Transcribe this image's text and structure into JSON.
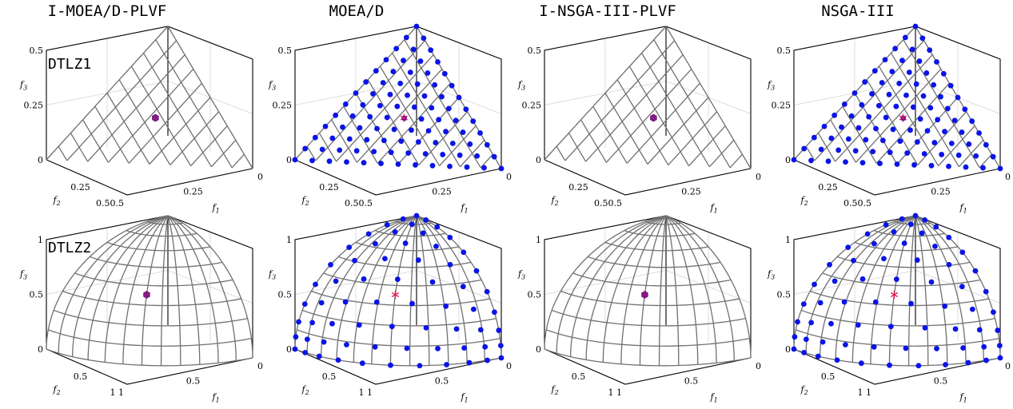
{
  "columns": [
    {
      "title": "I-MOEA/D-PLVF"
    },
    {
      "title": "MOEA/D"
    },
    {
      "title": "I-NSGA-III-PLVF"
    },
    {
      "title": "NSGA-III"
    }
  ],
  "rows": [
    {
      "label": "DTLZ1",
      "f3_ticks": [
        "0",
        "0.25",
        "0.5"
      ],
      "f2_ticks": [
        "0.25",
        "0.50.5"
      ],
      "f1_ticks": [
        "0.25",
        "0"
      ]
    },
    {
      "label": "DTLZ2",
      "f3_ticks": [
        "0",
        "0.5",
        "1"
      ],
      "f2_ticks": [
        "0.5",
        "1 1"
      ],
      "f1_ticks": [
        "0.5",
        "0"
      ]
    }
  ],
  "axis_labels": {
    "f1": "f₁",
    "f2": "f₂",
    "f3": "f₃"
  },
  "colors": {
    "solutions": "#0a14e6",
    "reference_point": "#e0144a",
    "preferred_point": "#8a1a8a",
    "front_mesh": "#707070"
  },
  "chart_data": [
    {
      "type": "scatter",
      "problem": "DTLZ1",
      "algorithm": "I-MOEA/D-PLVF",
      "front": "linear",
      "front_max": 0.5,
      "series": [
        {
          "name": "solutions",
          "marker": "hexagon",
          "points": [
            [
              0.17,
              0.17,
              0.17
            ]
          ]
        }
      ]
    },
    {
      "type": "scatter",
      "problem": "DTLZ1",
      "algorithm": "MOEA/D",
      "front": "linear",
      "front_max": 0.5,
      "reference_point": [
        0.17,
        0.17,
        0.17
      ],
      "series": [
        {
          "name": "solutions",
          "marker": "circle",
          "distribution": "uniform-simplex",
          "divisions": 12
        }
      ]
    },
    {
      "type": "scatter",
      "problem": "DTLZ1",
      "algorithm": "I-NSGA-III-PLVF",
      "front": "linear",
      "front_max": 0.5,
      "series": [
        {
          "name": "solutions",
          "marker": "hexagon",
          "points": [
            [
              0.17,
              0.17,
              0.17
            ]
          ]
        }
      ]
    },
    {
      "type": "scatter",
      "problem": "DTLZ1",
      "algorithm": "NSGA-III",
      "front": "linear",
      "front_max": 0.5,
      "reference_point": [
        0.17,
        0.17,
        0.17
      ],
      "series": [
        {
          "name": "solutions",
          "marker": "circle",
          "distribution": "uniform-simplex",
          "divisions": 12
        }
      ]
    },
    {
      "type": "scatter",
      "problem": "DTLZ2",
      "algorithm": "I-MOEA/D-PLVF",
      "front": "spherical",
      "front_max": 1,
      "series": [
        {
          "name": "solutions",
          "marker": "hexagon",
          "points": [
            [
              0.577,
              0.577,
              0.577
            ]
          ]
        }
      ]
    },
    {
      "type": "scatter",
      "problem": "DTLZ2",
      "algorithm": "MOEA/D",
      "front": "spherical",
      "front_max": 1,
      "reference_point": [
        0.577,
        0.577,
        0.577
      ],
      "series": [
        {
          "name": "solutions",
          "marker": "circle",
          "distribution": "uniform-simplex",
          "divisions": 10
        }
      ]
    },
    {
      "type": "scatter",
      "problem": "DTLZ2",
      "algorithm": "I-NSGA-III-PLVF",
      "front": "spherical",
      "front_max": 1,
      "series": [
        {
          "name": "solutions",
          "marker": "hexagon",
          "points": [
            [
              0.577,
              0.577,
              0.577
            ]
          ]
        }
      ]
    },
    {
      "type": "scatter",
      "problem": "DTLZ2",
      "algorithm": "NSGA-III",
      "front": "spherical",
      "front_max": 1,
      "reference_point": [
        0.577,
        0.577,
        0.577
      ],
      "series": [
        {
          "name": "solutions",
          "marker": "circle",
          "distribution": "uniform-simplex",
          "divisions": 10
        }
      ]
    }
  ]
}
